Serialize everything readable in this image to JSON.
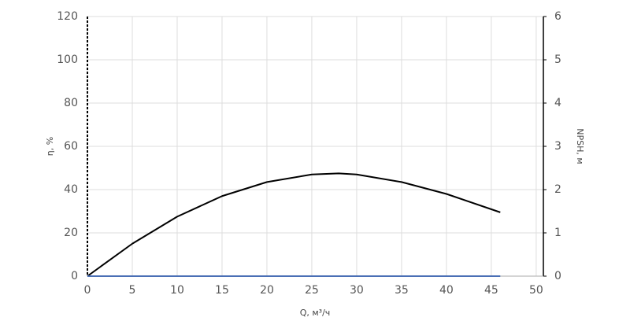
{
  "chart_data": {
    "type": "line",
    "x_label": "Q, м³/ч",
    "y_label": "η, %",
    "y2_label": "NPSH, м",
    "x": [
      0,
      5,
      10,
      15,
      20,
      25,
      28,
      30,
      35,
      40,
      46
    ],
    "series": [
      {
        "color": "#000000",
        "values": [
          0,
          15,
          27.5,
          37,
          43.5,
          47,
          47.5,
          47,
          43.5,
          38,
          29.5
        ]
      },
      {
        "color": "#4a6fb5",
        "axis": "y2",
        "values": [
          0,
          0,
          0,
          0,
          0,
          0,
          0,
          0,
          0,
          0,
          0
        ]
      }
    ],
    "xlim": [
      0,
      50.8
    ],
    "xticks": [
      0,
      5,
      10,
      15,
      20,
      25,
      30,
      35,
      40,
      45,
      50
    ],
    "ylim": [
      0,
      120
    ],
    "yticks": [
      0,
      20,
      40,
      60,
      80,
      100,
      120
    ],
    "y2lim": [
      0,
      6
    ],
    "y2ticks": [
      0,
      1,
      2,
      3,
      4,
      5,
      6
    ],
    "grid": true
  }
}
